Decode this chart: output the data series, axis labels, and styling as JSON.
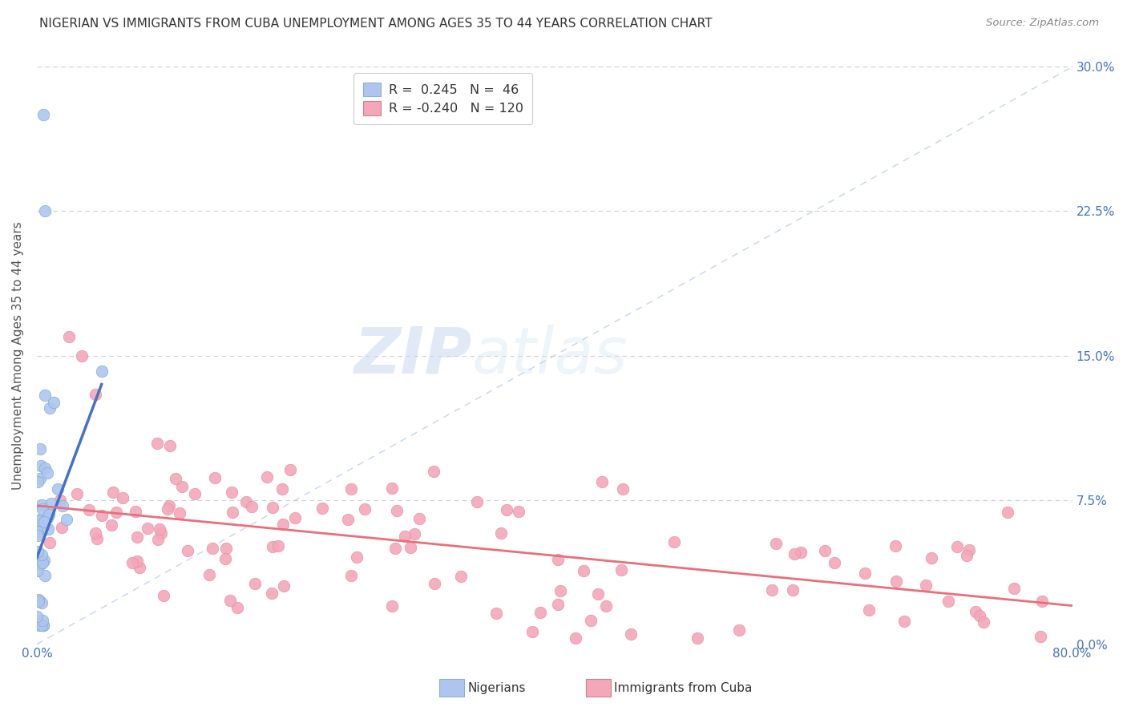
{
  "title": "NIGERIAN VS IMMIGRANTS FROM CUBA UNEMPLOYMENT AMONG AGES 35 TO 44 YEARS CORRELATION CHART",
  "source": "Source: ZipAtlas.com",
  "ylabel": "Unemployment Among Ages 35 to 44 years",
  "yticks_labels": [
    "0.0%",
    "7.5%",
    "15.0%",
    "22.5%",
    "30.0%"
  ],
  "ytick_vals": [
    0.0,
    7.5,
    15.0,
    22.5,
    30.0
  ],
  "color_nigerian": "#aec6ef",
  "color_cuba": "#f4a7b9",
  "color_nigerian_line": "#4472c4",
  "color_cuba_line": "#e8707a",
  "color_dashed": "#b8cce4",
  "background_color": "#ffffff",
  "xmin": 0.0,
  "xmax": 80.0,
  "ymin": 0.0,
  "ymax": 30.0,
  "legend_label1": "R =  0.245   N =  46",
  "legend_label2": "R = -0.240   N = 120",
  "legend_r1": " 0.245",
  "legend_r2": "-0.240",
  "legend_n1": " 46",
  "legend_n2": " 120",
  "nig_intercept": 4.5,
  "nig_slope": 1.8,
  "nig_x_end": 5.0,
  "cuba_intercept": 7.2,
  "cuba_slope": -0.065,
  "cuba_x_end": 80.0
}
